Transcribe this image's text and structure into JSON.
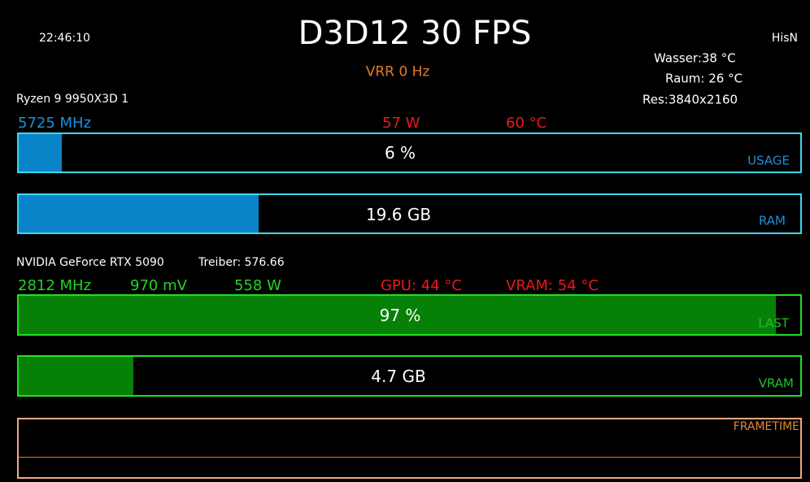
{
  "header": {
    "time": "22:46:10",
    "title": "D3D12 30 FPS",
    "user": "HisN",
    "vrr": "VRR 0 Hz"
  },
  "environment": {
    "water": "Wasser:38 °C",
    "room": "Raum: 26 °C",
    "resolution": "Res:3840x2160"
  },
  "cpu": {
    "name": "Ryzen 9 9950X3D 1",
    "clock": "5725 MHz",
    "power": "57 W",
    "temp": "60 °C",
    "usage": {
      "text": "6 %",
      "label": "USAGE"
    },
    "ram": {
      "text": "19.6 GB",
      "label": "RAM"
    }
  },
  "gpu": {
    "name": "NVIDIA GeForce RTX 5090",
    "driver": "Treiber: 576.66",
    "clock": "2812 MHz",
    "voltage": "970 mV",
    "power": "558 W",
    "temp": "GPU: 44 °C",
    "vram_temp": "VRAM: 54 °C",
    "load": {
      "text": "97 %",
      "label": "LAST"
    },
    "vram": {
      "text": "4.7 GB",
      "label": "VRAM"
    }
  },
  "frametime": {
    "label": "FRAMETIME"
  }
}
